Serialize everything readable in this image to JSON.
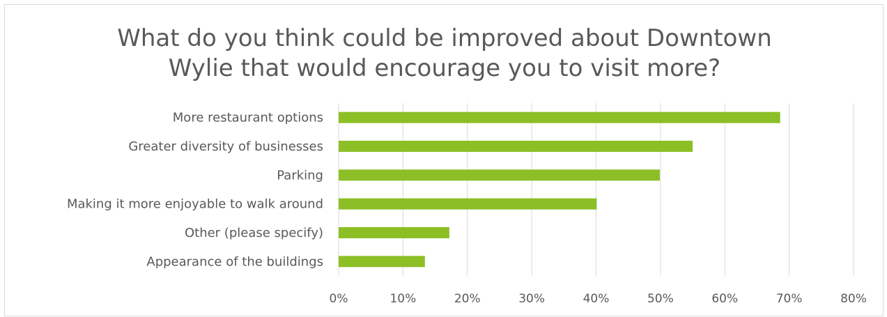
{
  "chart_data": {
    "type": "bar",
    "orientation": "horizontal",
    "title_lines": [
      "What do you think could be improved about Downtown",
      "Wylie that would encourage you to visit more?"
    ],
    "categories": [
      "More restaurant options",
      "Greater diversity of businesses",
      "Parking",
      "Making it more enjoyable to walk around",
      "Other (please specify)",
      "Appearance of the buildings"
    ],
    "values": [
      68.6,
      55.0,
      49.9,
      40.1,
      17.2,
      13.4
    ],
    "value_unit": "%",
    "xlim": [
      0,
      80
    ],
    "x_ticks": [
      "0%",
      "10%",
      "20%",
      "30%",
      "40%",
      "50%",
      "60%",
      "70%",
      "80%"
    ],
    "grid": true,
    "legend": "none",
    "bar_color": "#8cbf26",
    "grid_color": "#d9d9d9",
    "text_color": "#595959"
  }
}
